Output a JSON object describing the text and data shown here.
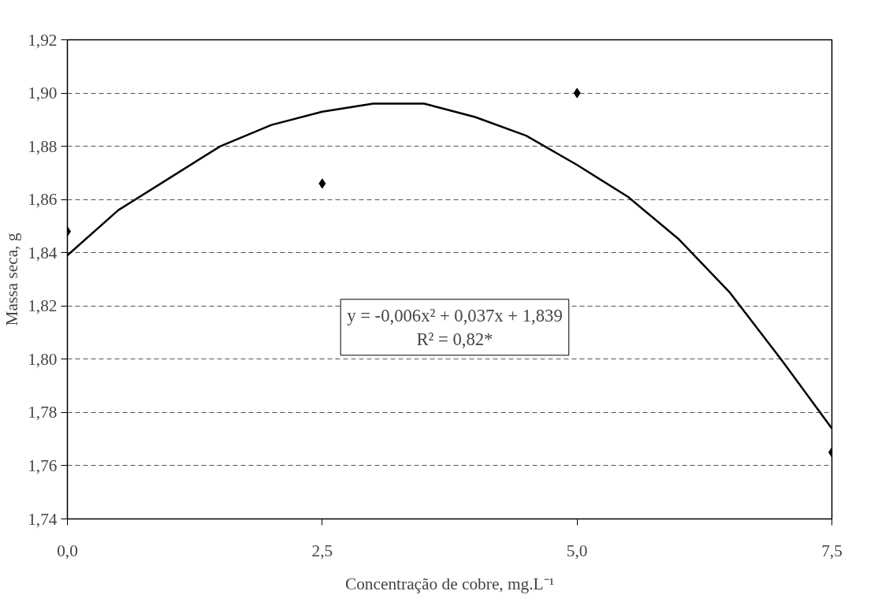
{
  "chart_data": {
    "type": "scatter",
    "xlabel": "Concentração de cobre, mg.L⁻¹",
    "ylabel": "Massa seca, g",
    "annotations": [
      "y = -0,006x² + 0,037x + 1,839",
      "R² = 0,82*"
    ],
    "series": [
      {
        "color": "#000000",
        "marker": "diamond",
        "x": [
          0,
          2.5,
          5.0,
          7.5
        ],
        "values": [
          1.848,
          1.866,
          1.9,
          1.765
        ]
      },
      {
        "type": "line",
        "color": "#000000",
        "line_style": "solid",
        "x": [
          0,
          0.5,
          1,
          1.5,
          2,
          2.5,
          3,
          3.5,
          4,
          4.5,
          5,
          5.5,
          6,
          6.5,
          7,
          7.5
        ],
        "values": [
          1.839,
          1.856,
          1.868,
          1.88,
          1.888,
          1.893,
          1.896,
          1.896,
          1.891,
          1.884,
          1.873,
          1.861,
          1.845,
          1.825,
          1.8,
          1.774
        ]
      }
    ],
    "xlim": [
      0,
      7.5
    ],
    "xticks": [
      {
        "value": 0,
        "label": "0,0"
      },
      {
        "value": 2.5,
        "label": "2,5"
      },
      {
        "value": 5.0,
        "label": "5,0"
      },
      {
        "value": 7.5,
        "label": "7,5"
      }
    ],
    "ylim": [
      1.74,
      1.92
    ],
    "yticks": [
      {
        "value": 1.74,
        "label": "1,74"
      },
      {
        "value": 1.76,
        "label": "1,76"
      },
      {
        "value": 1.78,
        "label": "1,78"
      },
      {
        "value": 1.8,
        "label": "1,80"
      },
      {
        "value": 1.82,
        "label": "1,82"
      },
      {
        "value": 1.84,
        "label": "1,84"
      },
      {
        "value": 1.86,
        "label": "1,86"
      },
      {
        "value": 1.88,
        "label": "1,88"
      },
      {
        "value": 1.9,
        "label": "1,90"
      },
      {
        "value": 1.92,
        "label": "1,92"
      }
    ],
    "grid": "y"
  }
}
